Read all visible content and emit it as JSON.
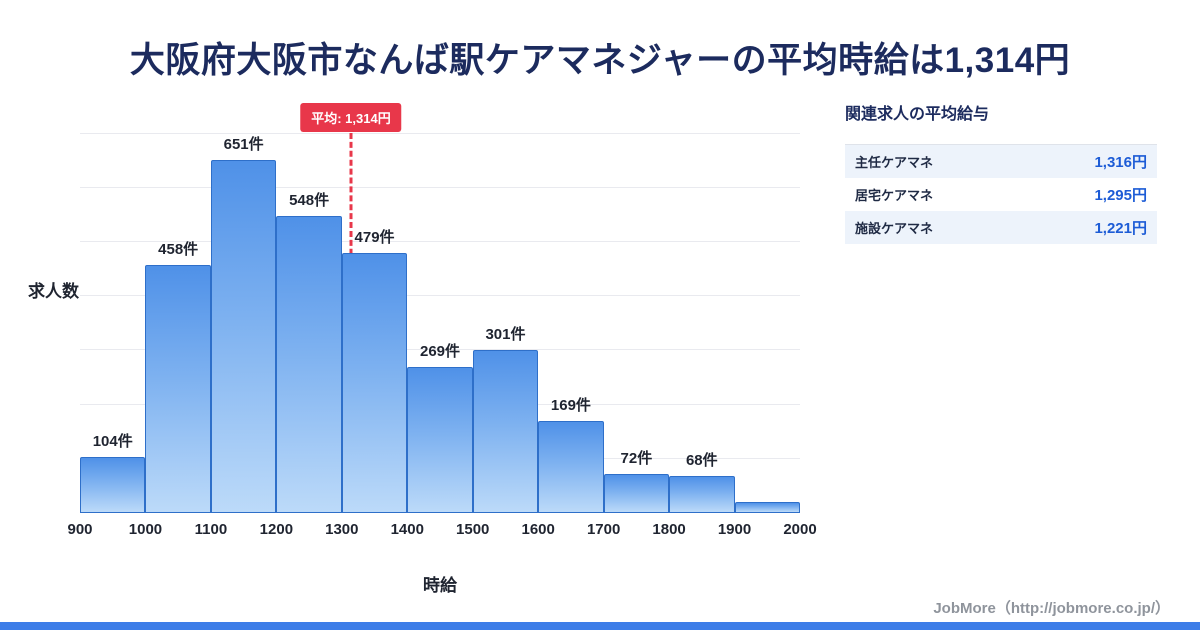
{
  "title": "大阪府大阪市なんば駅ケアマネジャーの平均時給は1,314円",
  "chart_data": {
    "type": "bar",
    "title": "",
    "xlabel": "時給",
    "ylabel": "求人数",
    "x_min": 900,
    "x_max": 2000,
    "bin_width": 100,
    "x_ticks": [
      "900",
      "1000",
      "1100",
      "1200",
      "1300",
      "1400",
      "1500",
      "1600",
      "1700",
      "1800",
      "1900",
      "2000"
    ],
    "values": [
      104,
      458,
      651,
      548,
      479,
      269,
      301,
      169,
      72,
      68,
      20
    ],
    "bar_labels": [
      "104件",
      "458件",
      "651件",
      "548件",
      "479件",
      "269件",
      "301件",
      "169件",
      "72件",
      "68件",
      ""
    ],
    "ylim": [
      0,
      760
    ],
    "grid": "horizontal",
    "grid_step": 100,
    "average": 1314,
    "average_label": "平均: 1,314円"
  },
  "panel": {
    "heading": "関連求人の平均給与",
    "rows": [
      {
        "label": "主任ケアマネ",
        "value": "1,316円"
      },
      {
        "label": "居宅ケアマネ",
        "value": "1,295円"
      },
      {
        "label": "施設ケアマネ",
        "value": "1,221円"
      }
    ]
  },
  "footer": {
    "credit": "JobMore（http://jobmore.co.jp/）"
  },
  "colors": {
    "title_text": "#1c2b5e",
    "bar_border": "#2e6fc9",
    "bar_gradient_top": "#4f91e8",
    "bar_gradient_bottom": "#bcdaf9",
    "average_line": "#e8374a",
    "panel_value_text": "#1d5cd6",
    "panel_row_alt_bg": "#edf3fb",
    "bottom_strip": "#3d7de8"
  }
}
